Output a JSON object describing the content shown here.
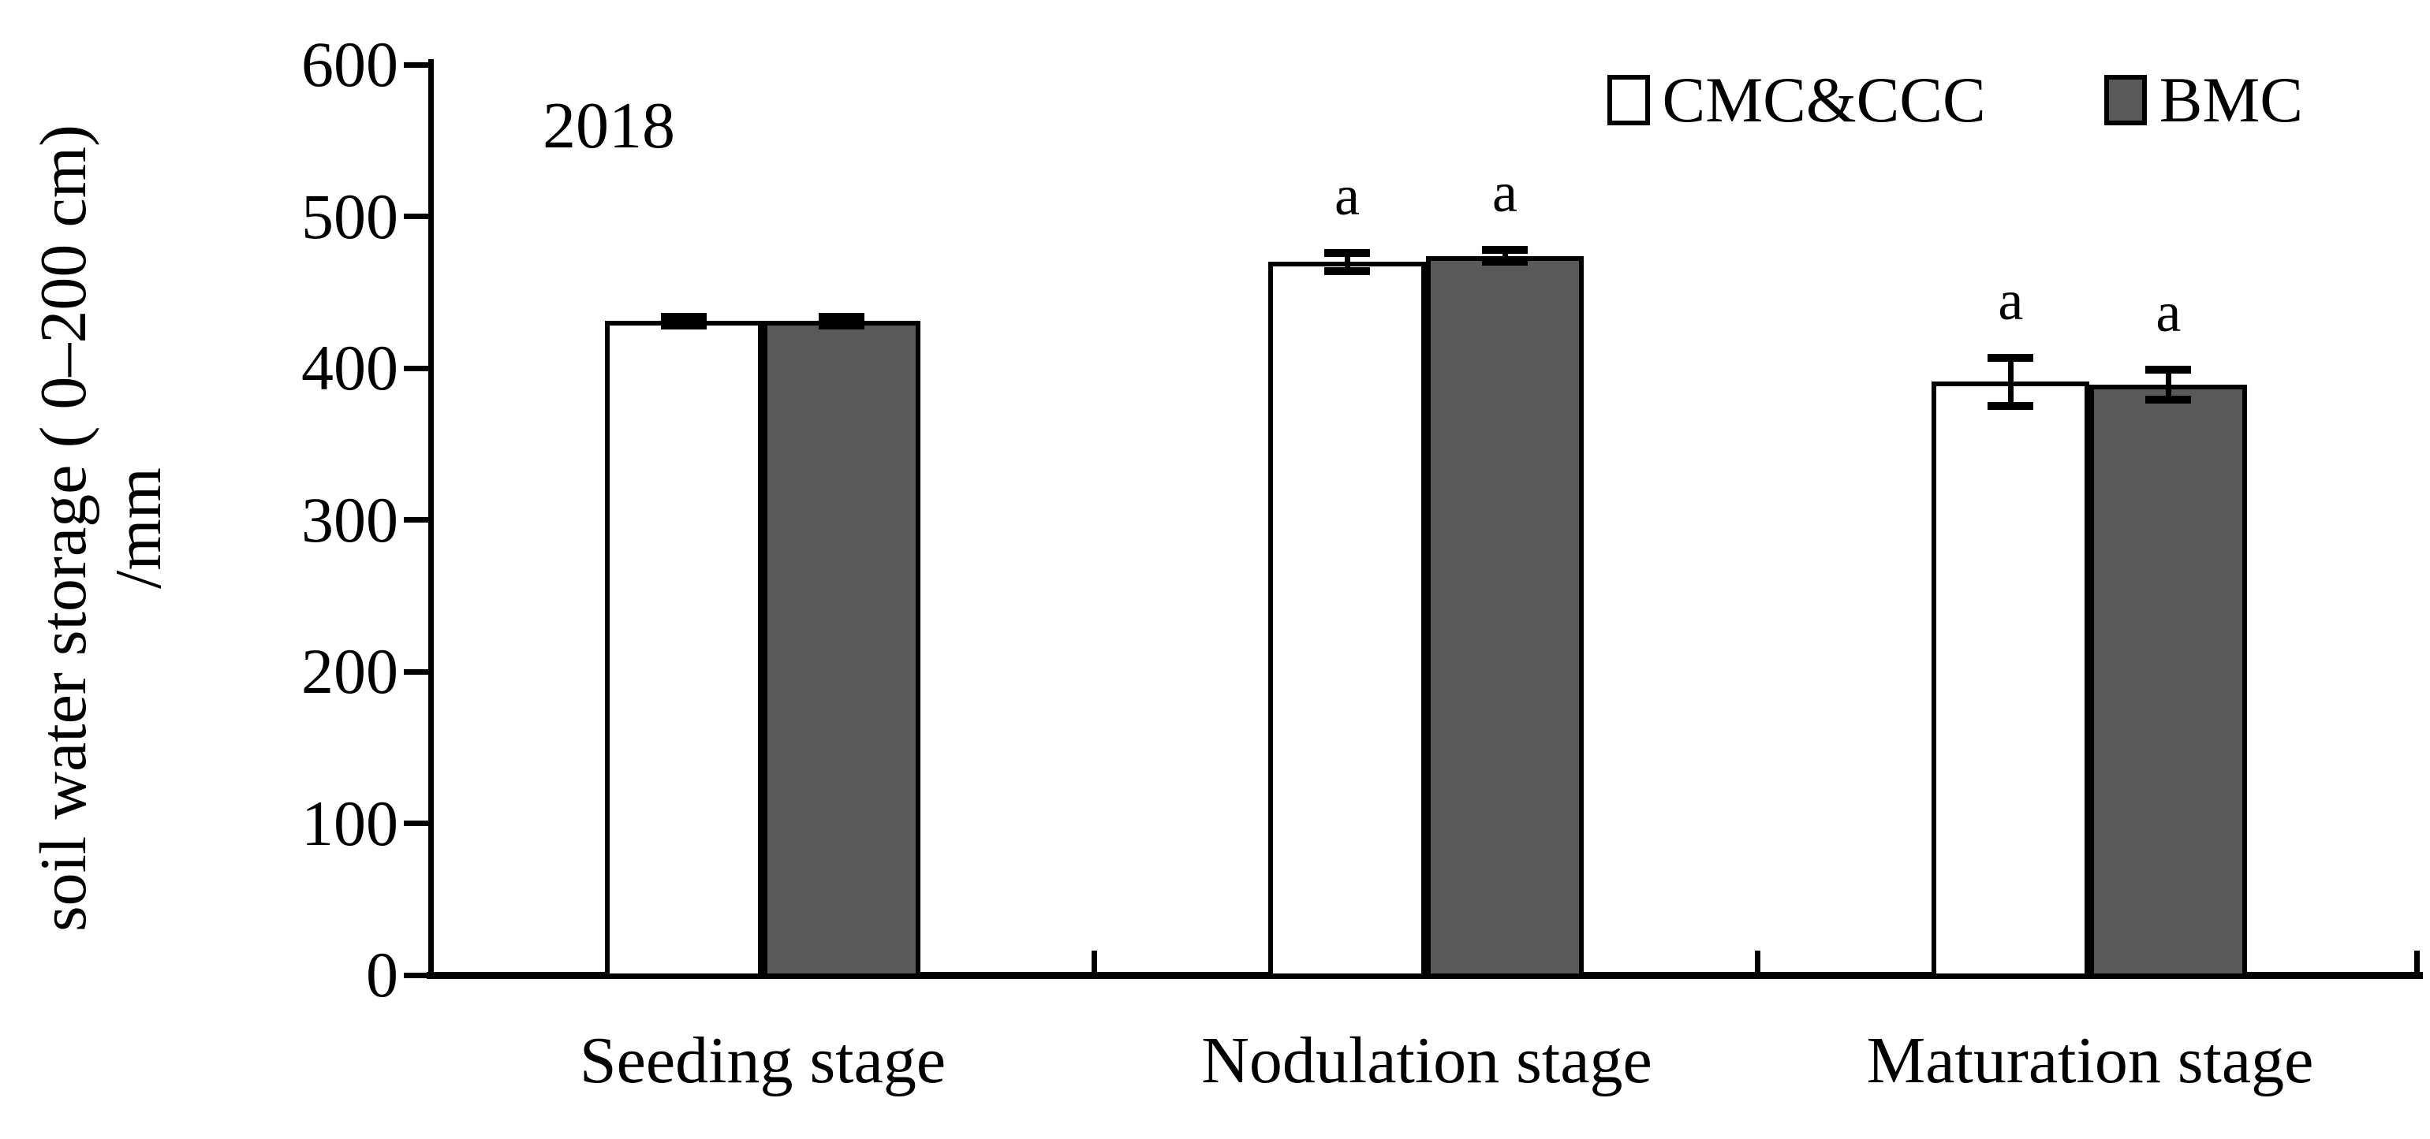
{
  "chart_data": {
    "type": "bar",
    "year_label": "2018",
    "categories": [
      "Seeding stage",
      "Nodulation stage",
      "Maturation stage"
    ],
    "series": [
      {
        "name": "CMC&CCC",
        "fill": "#ffffff",
        "values": [
          431,
          470,
          391
        ],
        "errors": [
          3,
          6,
          16
        ],
        "sig_labels": [
          "",
          "a",
          "a"
        ]
      },
      {
        "name": "BMC",
        "fill": "#595959",
        "values": [
          431,
          474,
          389
        ],
        "errors": [
          3,
          4,
          10
        ],
        "sig_labels": [
          "",
          "a",
          "a"
        ]
      }
    ],
    "ylabel_line1": "soil water storage ( 0–200 cm)",
    "ylabel_line2": "/mm",
    "ylim": [
      0,
      600
    ],
    "yticks": [
      0,
      100,
      200,
      300,
      400,
      500,
      600
    ],
    "legend_position": "top-right",
    "grid": false,
    "axis_color": "#000000"
  }
}
